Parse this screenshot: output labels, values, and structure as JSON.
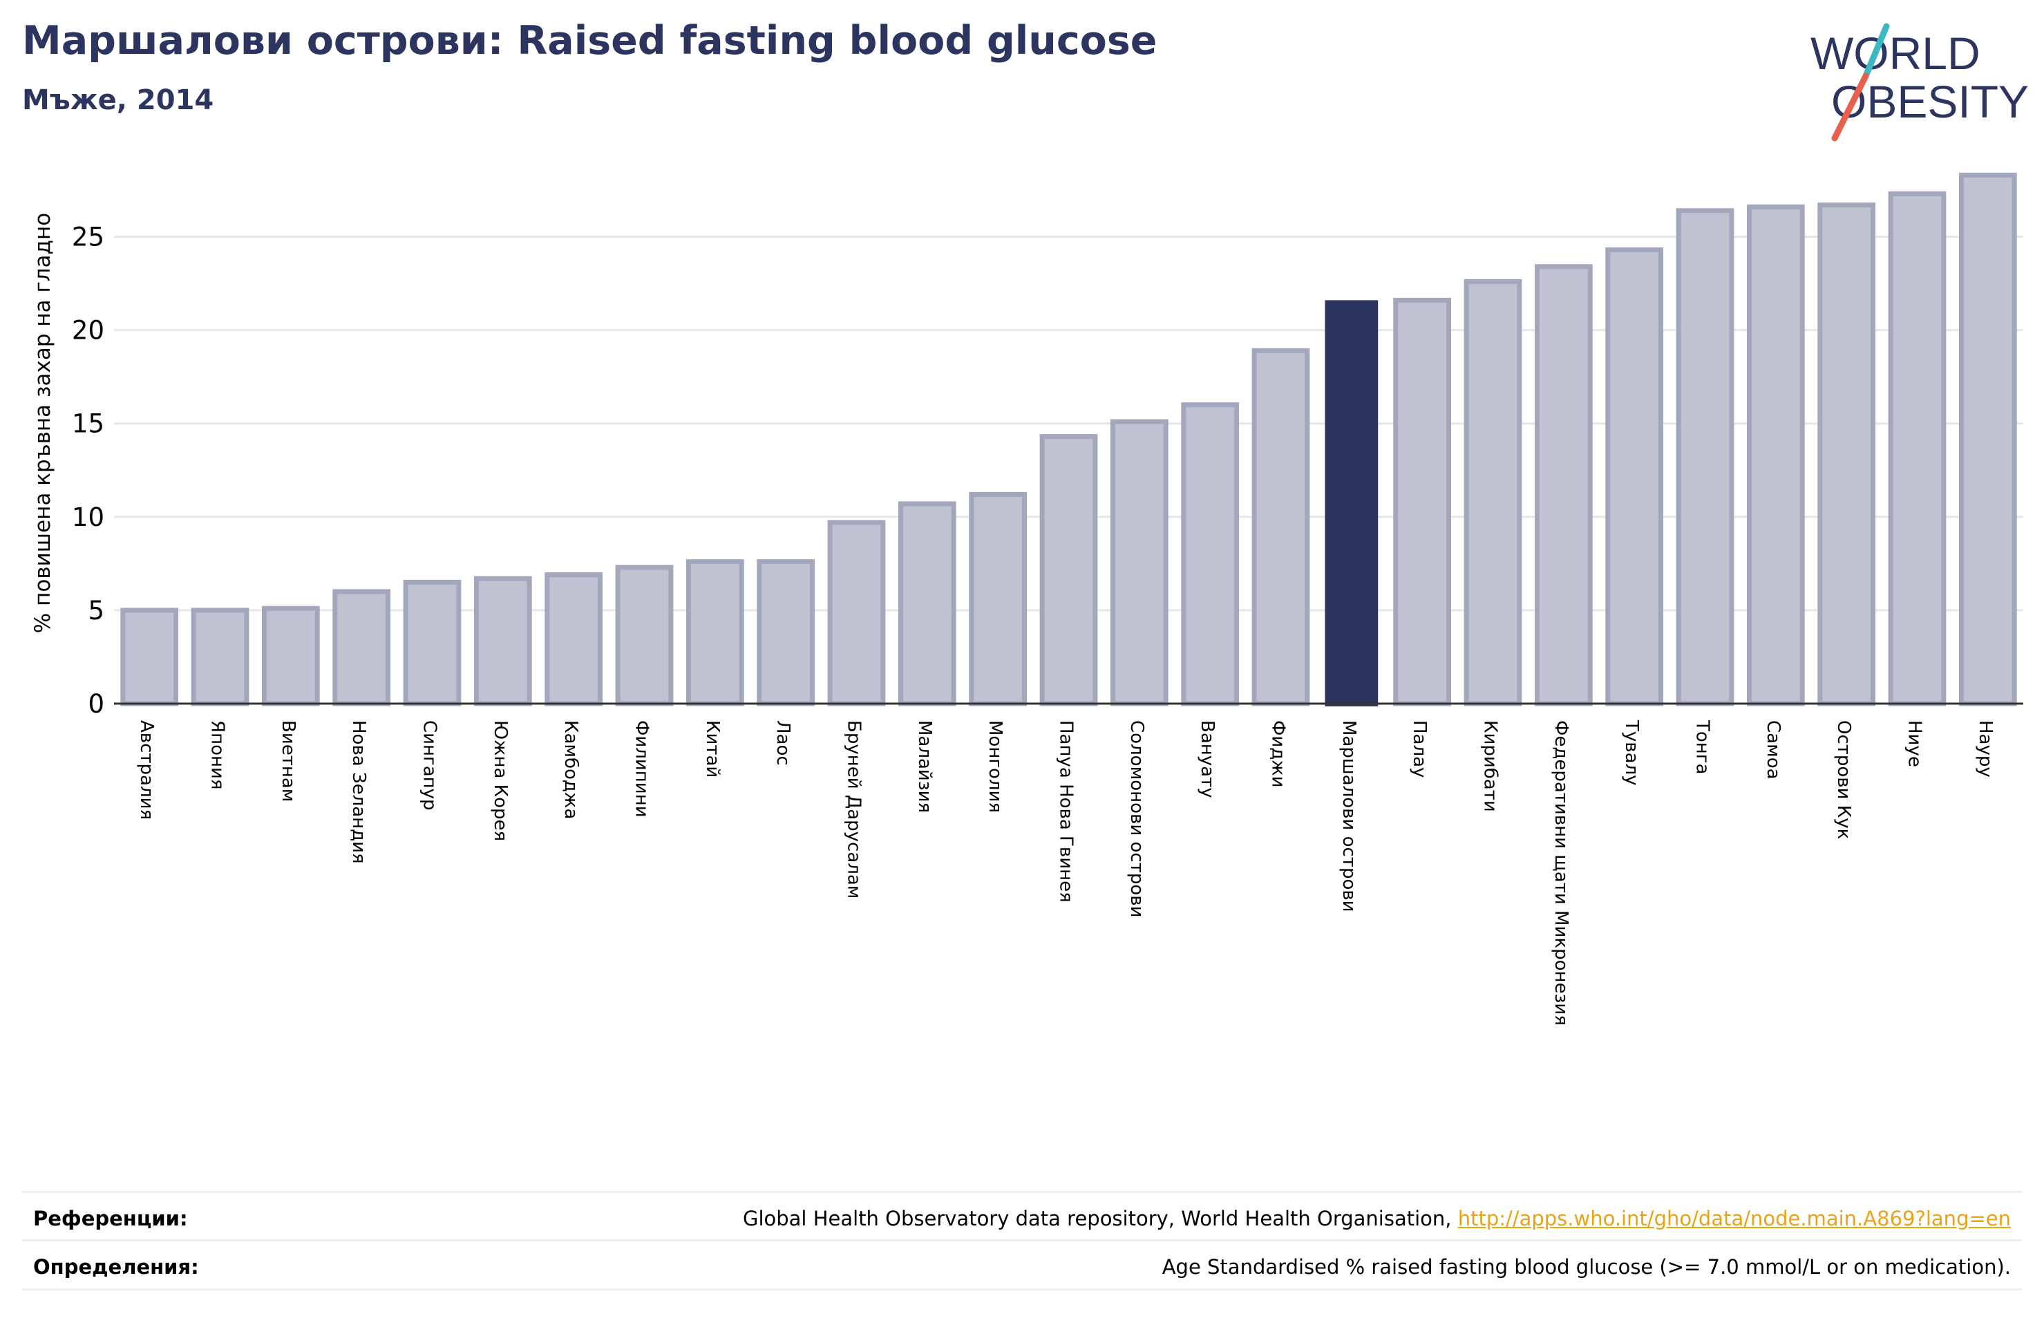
{
  "header": {
    "title": "Маршалови острови: Raised fasting blood glucose",
    "subtitle": "Мъже, 2014"
  },
  "logo": {
    "line1": "WORLD",
    "line2": "OBESITY",
    "text_color": "#2b3560",
    "slash_color_top": "#3bb8c4",
    "slash_color_bottom": "#e8604c"
  },
  "chart_data": {
    "type": "bar",
    "title": "",
    "xlabel": "",
    "ylabel": "% повишена кръвна захар на гладно",
    "ylim": [
      0,
      28.5
    ],
    "yticks": [
      0,
      5,
      10,
      15,
      20,
      25
    ],
    "grid": true,
    "highlight": "Маршалови острови",
    "highlight_color": "#2b3560",
    "bar_color": "#bfc2d0",
    "bar_edge_color": "#a3a7bc",
    "categories": [
      "Австралия",
      "Япония",
      "Виетнам",
      "Нова Зеландия",
      "Сингапур",
      "Южна Корея",
      "Камбоджа",
      "Филипини",
      "Китай",
      "Лаос",
      "Бруней Дарусалам",
      "Малайзия",
      "Монголия",
      "Папуа Нова Гвинея",
      "Соломонови острови",
      "Вануату",
      "Фиджи",
      "Маршалови острови",
      "Палау",
      "Кирибати",
      "Федеративни щати Микронезия",
      "Тувалу",
      "Тонга",
      "Самоа",
      "Острови Кук",
      "Ниуе",
      "Науру"
    ],
    "values": [
      5.0,
      5.0,
      5.1,
      6.0,
      6.5,
      6.7,
      6.9,
      7.3,
      7.6,
      7.6,
      9.7,
      10.7,
      11.2,
      14.3,
      15.1,
      16.0,
      18.9,
      21.6,
      21.6,
      22.6,
      23.4,
      24.3,
      26.4,
      26.6,
      26.7,
      27.3,
      28.3
    ]
  },
  "references": {
    "label": "Референции:",
    "text": "Global Health Observatory data repository, World Health Organisation,",
    "link": "http://apps.who.int/gho/data/node.main.A869?lang=en"
  },
  "definitions": {
    "label": "Определения:",
    "text": "Age Standardised % raised fasting blood glucose (>= 7.0 mmol/L or on medication)."
  }
}
